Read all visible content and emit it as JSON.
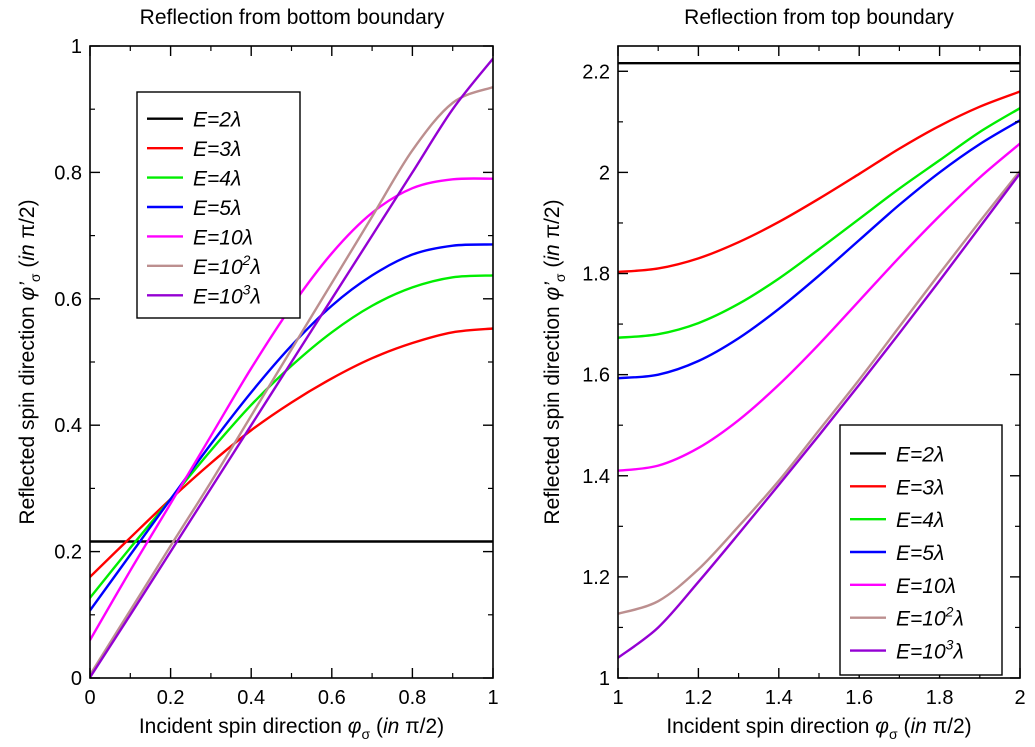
{
  "chart_data": [
    {
      "type": "line",
      "title": "Reflection from bottom boundary",
      "xlabel": {
        "prefix": "Incident spin direction ",
        "symbol": "φ",
        "sub": "σ",
        "unit_open": " (",
        "unit_in": "in",
        "unit_rest": " π/2)"
      },
      "ylabel": {
        "prefix": "Reflected spin direction ",
        "symbol": "φ’",
        "sub": "σ",
        "unit_open": " (",
        "unit_in": "in",
        "unit_rest": " π/2)"
      },
      "xlim": [
        0,
        1
      ],
      "ylim": [
        0,
        1
      ],
      "xticks": [
        {
          "value": 0,
          "label": "0"
        },
        {
          "value": 0.2,
          "label": "0.2"
        },
        {
          "value": 0.4,
          "label": "0.4"
        },
        {
          "value": 0.6,
          "label": "0.6"
        },
        {
          "value": 0.8,
          "label": "0.8"
        },
        {
          "value": 1,
          "label": "1"
        }
      ],
      "yticks": [
        {
          "value": 0,
          "label": "0"
        },
        {
          "value": 0.2,
          "label": "0.2"
        },
        {
          "value": 0.4,
          "label": "0.4"
        },
        {
          "value": 0.6,
          "label": "0.6"
        },
        {
          "value": 0.8,
          "label": "0.8"
        },
        {
          "value": 1,
          "label": "1"
        }
      ],
      "grid": false,
      "legend_position": "top-left",
      "x": [
        0,
        0.1,
        0.2,
        0.3,
        0.4,
        0.5,
        0.6,
        0.7,
        0.8,
        0.9,
        1.0
      ],
      "series": [
        {
          "name": "E=2λ",
          "label_main": "E=2λ",
          "label_sup": "",
          "label_tail": "",
          "color": "#000000",
          "values": [
            0.216,
            0.216,
            0.216,
            0.216,
            0.216,
            0.216,
            0.216,
            0.216,
            0.216,
            0.216,
            0.216
          ]
        },
        {
          "name": "E=3λ",
          "label_main": "E=3λ",
          "label_sup": "",
          "label_tail": "",
          "color": "#ff0000",
          "values": [
            0.16,
            0.222,
            0.283,
            0.34,
            0.392,
            0.436,
            0.474,
            0.506,
            0.53,
            0.547,
            0.553
          ]
        },
        {
          "name": "E=4λ",
          "label_main": "E=4λ",
          "label_sup": "",
          "label_tail": "",
          "color": "#00ee00",
          "values": [
            0.127,
            0.206,
            0.283,
            0.36,
            0.432,
            0.494,
            0.547,
            0.589,
            0.618,
            0.634,
            0.637
          ]
        },
        {
          "name": "E=5λ",
          "label_main": "E=5λ",
          "label_sup": "",
          "label_tail": "",
          "color": "#0000ff",
          "values": [
            0.107,
            0.195,
            0.283,
            0.37,
            0.452,
            0.526,
            0.589,
            0.637,
            0.67,
            0.684,
            0.686
          ]
        },
        {
          "name": "E=10λ",
          "label_main": "E=10λ",
          "label_sup": "",
          "label_tail": "",
          "color": "#ff00ff",
          "values": [
            0.06,
            0.17,
            0.276,
            0.383,
            0.49,
            0.588,
            0.672,
            0.736,
            0.775,
            0.789,
            0.79
          ]
        },
        {
          "name": "E=10²λ",
          "label_main": "E=10",
          "label_sup": "2",
          "label_tail": "λ",
          "color": "#bc8f8f",
          "values": [
            0.005,
            0.107,
            0.209,
            0.31,
            0.415,
            0.52,
            0.625,
            0.73,
            0.835,
            0.91,
            0.935
          ]
        },
        {
          "name": "E=10³λ",
          "label_main": "E=10",
          "label_sup": "3",
          "label_tail": "λ",
          "color": "#9400d3",
          "values": [
            0.001,
            0.1,
            0.2,
            0.3,
            0.4,
            0.5,
            0.6,
            0.7,
            0.8,
            0.9,
            0.98
          ]
        }
      ]
    },
    {
      "type": "line",
      "title": "Reflection from top boundary",
      "xlabel": {
        "prefix": "Incident spin direction ",
        "symbol": "φ",
        "sub": "σ",
        "unit_open": " (",
        "unit_in": "in",
        "unit_rest": " π/2)"
      },
      "ylabel": {
        "prefix": "Reflected spin direction ",
        "symbol": "φ’",
        "sub": "σ",
        "unit_open": " (",
        "unit_in": "in",
        "unit_rest": " π/2)"
      },
      "xlim": [
        1,
        2
      ],
      "ylim": [
        1,
        2.25
      ],
      "xticks": [
        {
          "value": 1,
          "label": "1"
        },
        {
          "value": 1.2,
          "label": "1.2"
        },
        {
          "value": 1.4,
          "label": "1.4"
        },
        {
          "value": 1.6,
          "label": "1.6"
        },
        {
          "value": 1.8,
          "label": "1.8"
        },
        {
          "value": 2,
          "label": "2"
        }
      ],
      "yticks": [
        {
          "value": 1,
          "label": "1"
        },
        {
          "value": 1.2,
          "label": "1.2"
        },
        {
          "value": 1.4,
          "label": "1.4"
        },
        {
          "value": 1.6,
          "label": "1.6"
        },
        {
          "value": 1.8,
          "label": "1.8"
        },
        {
          "value": 2,
          "label": "2"
        },
        {
          "value": 2.2,
          "label": "2.2"
        }
      ],
      "grid": false,
      "legend_position": "bottom-right",
      "x": [
        1.0,
        1.1,
        1.2,
        1.3,
        1.4,
        1.5,
        1.6,
        1.7,
        1.8,
        1.9,
        2.0
      ],
      "series": [
        {
          "name": "E=2λ",
          "label_main": "E=2λ",
          "label_sup": "",
          "label_tail": "",
          "color": "#000000",
          "values": [
            2.216,
            2.216,
            2.216,
            2.216,
            2.216,
            2.216,
            2.216,
            2.216,
            2.216,
            2.216,
            2.216
          ]
        },
        {
          "name": "E=3λ",
          "label_main": "E=3λ",
          "label_sup": "",
          "label_tail": "",
          "color": "#ff0000",
          "values": [
            1.803,
            1.81,
            1.83,
            1.862,
            1.902,
            1.948,
            1.997,
            2.047,
            2.092,
            2.13,
            2.16
          ]
        },
        {
          "name": "E=4λ",
          "label_main": "E=4λ",
          "label_sup": "",
          "label_tail": "",
          "color": "#00ee00",
          "values": [
            1.673,
            1.68,
            1.702,
            1.74,
            1.79,
            1.848,
            1.908,
            1.968,
            2.024,
            2.08,
            2.127
          ]
        },
        {
          "name": "E=5λ",
          "label_main": "E=5λ",
          "label_sup": "",
          "label_tail": "",
          "color": "#0000ff",
          "values": [
            1.593,
            1.6,
            1.627,
            1.672,
            1.73,
            1.796,
            1.866,
            1.936,
            2.0,
            2.056,
            2.103
          ]
        },
        {
          "name": "E=10λ",
          "label_main": "E=10λ",
          "label_sup": "",
          "label_tail": "",
          "color": "#ff00ff",
          "values": [
            1.41,
            1.42,
            1.455,
            1.51,
            1.58,
            1.66,
            1.746,
            1.832,
            1.914,
            1.99,
            2.057
          ]
        },
        {
          "name": "E=10²λ",
          "label_main": "E=10",
          "label_sup": "2",
          "label_tail": "λ",
          "color": "#bc8f8f",
          "values": [
            1.127,
            1.152,
            1.215,
            1.3,
            1.39,
            1.49,
            1.59,
            1.695,
            1.8,
            1.903,
            2.003
          ]
        },
        {
          "name": "E=10³λ",
          "label_main": "E=10",
          "label_sup": "3",
          "label_tail": "λ",
          "color": "#9400d3",
          "values": [
            1.04,
            1.1,
            1.19,
            1.285,
            1.382,
            1.48,
            1.58,
            1.682,
            1.786,
            1.892,
            1.998
          ]
        }
      ]
    }
  ]
}
